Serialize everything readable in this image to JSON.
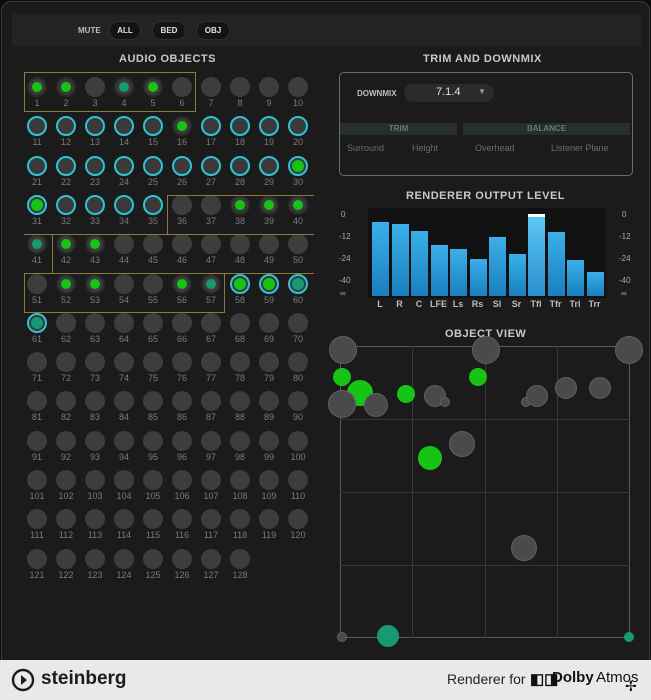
{
  "toolbar": {
    "mute_label": "MUTE",
    "all_label": "ALL",
    "bed_label": "BED",
    "obj_label": "OBJ"
  },
  "audio_objects": {
    "title": "AUDIO OBJECTS"
  },
  "trim_downmix": {
    "title": "TRIM AND DOWNMIX",
    "downmix_label": "DOWNMIX",
    "downmix_value": "7.1.4",
    "trim_header": "TRIM",
    "balance_header": "BALANCE",
    "trim_items": [
      "Surround",
      "Height"
    ],
    "balance_items": [
      "Overhead",
      "Listener Plane"
    ]
  },
  "renderer_output": {
    "title": "RENDERER OUTPUT LEVEL",
    "scale_left": [
      "0",
      "-12",
      "-24",
      "-40",
      "∞"
    ],
    "scale_right": [
      "0",
      "-12",
      "-24",
      "-40",
      "∞"
    ],
    "channels": [
      "L",
      "R",
      "C",
      "LFE",
      "Ls",
      "Rs",
      "Sl",
      "Sr",
      "Tfl",
      "Tfr",
      "Trl",
      "Trr"
    ]
  },
  "object_view": {
    "title": "OBJECT VIEW"
  },
  "footer": {
    "brand": "steinberg",
    "renderer_for": "Renderer for",
    "dolby": "Dolby",
    "atmos": "Atmos"
  },
  "colors": {
    "accent_cyan": "#2ec4d4",
    "active_green": "#16c416",
    "teal": "#179a74",
    "meter_blue": "#3ab0e8"
  }
}
